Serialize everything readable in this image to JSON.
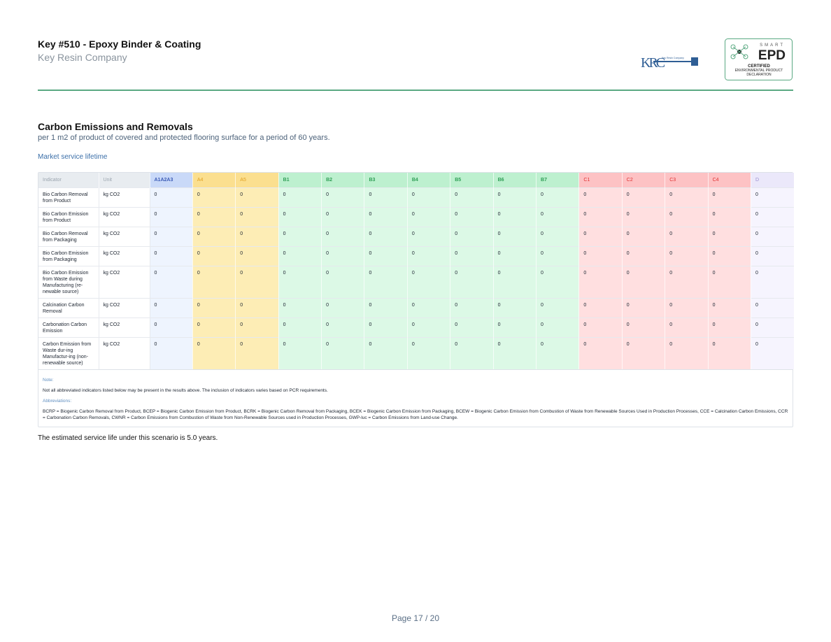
{
  "header": {
    "title": "Key #510 - Epoxy Binder & Coating",
    "company": "Key Resin Company"
  },
  "logos": {
    "krc_letters": "KRC",
    "krc_name": "Key Resin Company",
    "epd_smart": "SMART",
    "epd_mark": "EPD",
    "epd_certified": "CERTIFIED",
    "epd_declaration": "ENVIRONMENTAL PRODUCT DECLARATION"
  },
  "section": {
    "title": "Carbon Emissions and Removals",
    "subtitle": "per 1 m2 of product of covered and protected flooring surface for a period of 60 years.",
    "scenario": "Market service lifetime"
  },
  "table": {
    "columns": [
      "Indicator",
      "Unit",
      "A1A2A3",
      "A4",
      "A5",
      "B1",
      "B2",
      "B3",
      "B4",
      "B5",
      "B6",
      "B7",
      "C1",
      "C2",
      "C3",
      "C4",
      "D"
    ],
    "rows": [
      {
        "indicator": "Bio Carbon Removal from Product",
        "unit": "kg CO2",
        "values": [
          0,
          0,
          0,
          0,
          0,
          0,
          0,
          0,
          0,
          0,
          0,
          0,
          0,
          0,
          0
        ]
      },
      {
        "indicator": "Bio Carbon Emission from Product",
        "unit": "kg CO2",
        "values": [
          0,
          0,
          0,
          0,
          0,
          0,
          0,
          0,
          0,
          0,
          0,
          0,
          0,
          0,
          0
        ]
      },
      {
        "indicator": "Bio Carbon Removal from Packaging",
        "unit": "kg CO2",
        "values": [
          0,
          0,
          0,
          0,
          0,
          0,
          0,
          0,
          0,
          0,
          0,
          0,
          0,
          0,
          0
        ]
      },
      {
        "indicator": "Bio Carbon Emission from Packaging",
        "unit": "kg CO2",
        "values": [
          0,
          0,
          0,
          0,
          0,
          0,
          0,
          0,
          0,
          0,
          0,
          0,
          0,
          0,
          0
        ]
      },
      {
        "indicator": "Bio Carbon Emission from Waste during Manufacturing (re-newable source)",
        "unit": "kg CO2",
        "values": [
          0,
          0,
          0,
          0,
          0,
          0,
          0,
          0,
          0,
          0,
          0,
          0,
          0,
          0,
          0
        ]
      },
      {
        "indicator": "Calcination Carbon Removal",
        "unit": "kg CO2",
        "values": [
          0,
          0,
          0,
          0,
          0,
          0,
          0,
          0,
          0,
          0,
          0,
          0,
          0,
          0,
          0
        ]
      },
      {
        "indicator": "Carbonation Carbon Emission",
        "unit": "kg CO2",
        "values": [
          0,
          0,
          0,
          0,
          0,
          0,
          0,
          0,
          0,
          0,
          0,
          0,
          0,
          0,
          0
        ]
      },
      {
        "indicator": "Carbon Emission from Waste dur-ing Manufactur-ing (non-renewable source)",
        "unit": "kg CO2",
        "values": [
          0,
          0,
          0,
          0,
          0,
          0,
          0,
          0,
          0,
          0,
          0,
          0,
          0,
          0,
          0
        ]
      }
    ]
  },
  "notes": {
    "note_label": "Note:",
    "note": "Not all abbreviated indicators listed below may be present in the results above. The inclusion of indicators varies based on PCR requirements.",
    "abbr_label": "Abbreviations:",
    "abbr": "BCRP = Biogenic Carbon Removal from Product, BCEP = Biogenic Carbon Emission from Product, BCRK = Biogenic Carbon Removal from Packaging, BCEK = Biogenic Carbon Emission from Packaging, BCEW = Biogenic Carbon Emission from Combustion of Waste from Renewable Sources Used in Production Processes, CCE = Calcination Carbon Emissions, CCR = Carbonation Carbon Removals, CWNR = Carbon Emissions from Combustion of Waste from Non-Renewable Sources used in Production Processes, GWP-luc = Carbon Emissions from Land-use Change."
  },
  "footer": {
    "service_life": "The estimated service life under this scenario is 5.0 years.",
    "page": "Page 17 / 20"
  }
}
